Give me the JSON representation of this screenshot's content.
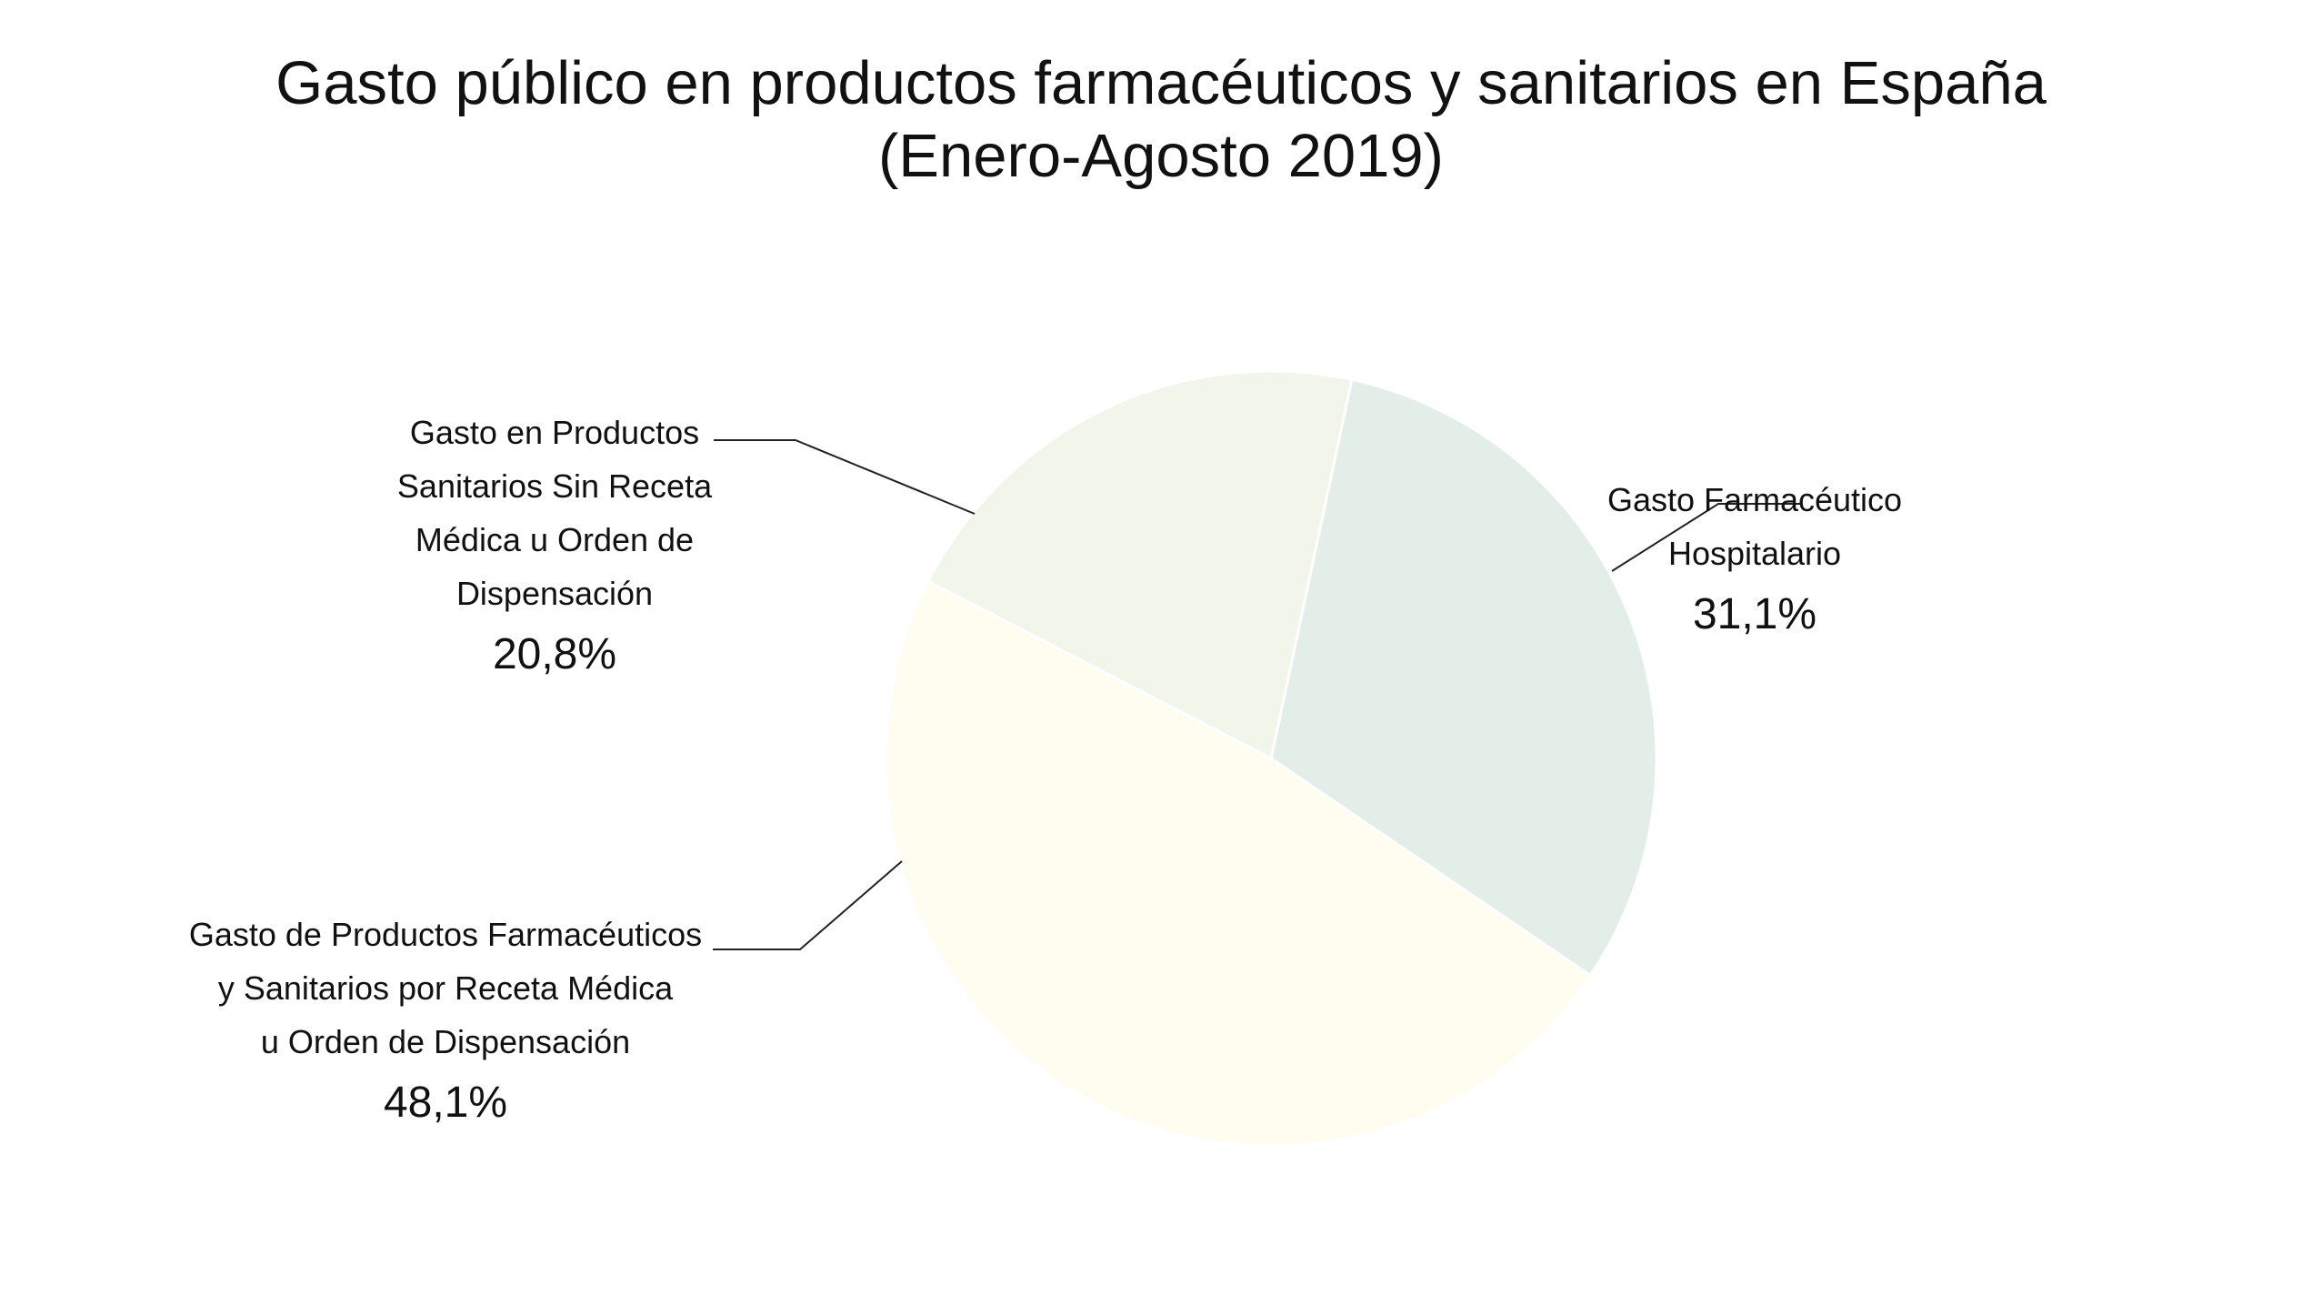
{
  "chart_data": {
    "type": "pie",
    "title": "Gasto público en productos farmacéuticos y sanitarios en España",
    "subtitle": "(Enero-Agosto 2019)",
    "slices": [
      {
        "label_lines": [
          "Gasto Farmacéutico",
          "Hospitalario"
        ],
        "label": "Gasto Farmacéutico Hospitalario",
        "value": 31.1,
        "value_label": "31,1%",
        "color": "#e3eee8"
      },
      {
        "label_lines": [
          "Gasto de Productos Farmacéuticos",
          "y Sanitarios por Receta Médica",
          "u Orden de Dispensación"
        ],
        "label": "Gasto de Productos Farmacéuticos y Sanitarios por Receta Médica u Orden de Dispensación",
        "value": 48.1,
        "value_label": "48,1%",
        "color": "#fefdf0"
      },
      {
        "label_lines": [
          "Gasto en Productos",
          "Sanitarios Sin Receta",
          "Médica u Orden de",
          "Dispensación"
        ],
        "label": "Gasto en Productos Sanitarios Sin Receta Médica u Orden de Dispensación",
        "value": 20.8,
        "value_label": "20,8%",
        "color": "#f2f5ea"
      }
    ],
    "legend": "none",
    "data_labels": "outside with leader lines"
  }
}
